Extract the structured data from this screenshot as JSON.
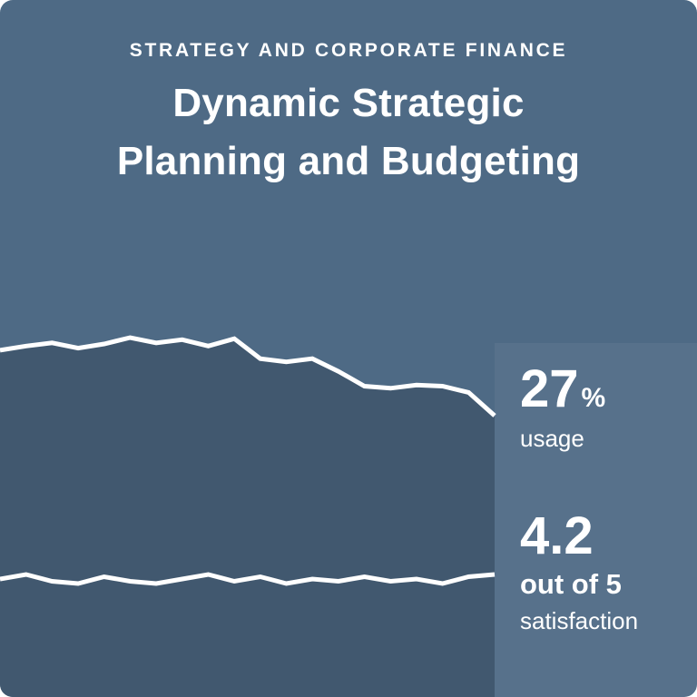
{
  "header": {
    "eyebrow": "STRATEGY AND CORPORATE FINANCE",
    "title_line1": "Dynamic Strategic",
    "title_line2": "Planning and Budgeting"
  },
  "stats": {
    "usage": {
      "value": "27",
      "unit": "%",
      "label": "usage"
    },
    "satisfaction": {
      "value": "4.2",
      "scale": "out of 5",
      "label": "satisfaction"
    }
  },
  "colors": {
    "background": "#4e6a85",
    "area_fill": "#41586f",
    "line": "#ffffff",
    "text": "#ffffff"
  },
  "chart_data": {
    "type": "area",
    "x": "time (implicit, no axis labels shown)",
    "axes_visible": false,
    "legend": "none",
    "series": [
      {
        "name": "usage",
        "unit": "%",
        "final_value": 27,
        "values": [
          33.2,
          33.6,
          33.9,
          33.4,
          33.8,
          34.4,
          33.9,
          34.2,
          33.6,
          34.3,
          32.4,
          32.1,
          32.4,
          31.2,
          29.8,
          29.6,
          29.9,
          29.8,
          29.2,
          27.0
        ]
      },
      {
        "name": "satisfaction",
        "unit": "out of 5",
        "final_value": 4.2,
        "values": [
          4.21,
          4.23,
          4.2,
          4.19,
          4.22,
          4.2,
          4.19,
          4.21,
          4.23,
          4.2,
          4.22,
          4.19,
          4.21,
          4.2,
          4.22,
          4.2,
          4.21,
          4.19,
          4.22,
          4.23
        ]
      }
    ],
    "notes": "White jagged trend lines over a dark slate area fill; usage line is the top edge of the filled area ending at 27%, satisfaction line runs nearly flat across the lower part of the fill."
  }
}
